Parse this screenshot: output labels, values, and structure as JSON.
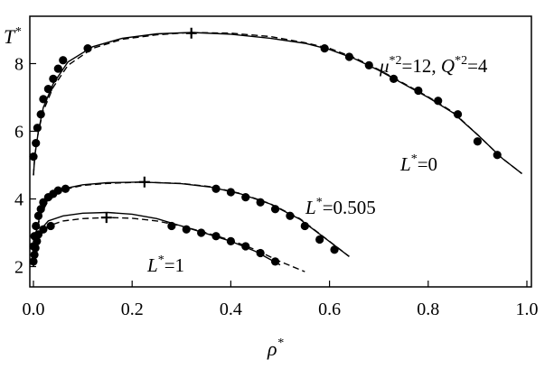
{
  "chart_data": {
    "type": "scatter",
    "title": "",
    "xlabel": "ρ",
    "xlabel_sup": "*",
    "ylabel": "T",
    "ylabel_sup": "*",
    "xlim": [
      0,
      1.0
    ],
    "ylim": [
      1.4,
      9.4
    ],
    "xticks": [
      0.0,
      0.2,
      0.4,
      0.6,
      0.8,
      1.0
    ],
    "xtick_labels": [
      "0.0",
      "0.2",
      "0.4",
      "0.6",
      "0.8",
      "1.0"
    ],
    "yticks": [
      2,
      4,
      6,
      8
    ],
    "ytick_labels": [
      "2",
      "4",
      "6",
      "8"
    ],
    "grid": false,
    "legend": "none",
    "parameter_annotation": {
      "mu_sym": "μ",
      "mu_sup": "*2",
      "mu_val": "=12, ",
      "q_sym": "Q",
      "q_sup": "*2",
      "q_val": "=4"
    },
    "series": [
      {
        "label_sym": "L",
        "label_sup": "*",
        "label_val": "=0",
        "points": [
          [
            0.0,
            5.25
          ],
          [
            0.005,
            5.65
          ],
          [
            0.008,
            6.1
          ],
          [
            0.015,
            6.5
          ],
          [
            0.02,
            6.95
          ],
          [
            0.03,
            7.25
          ],
          [
            0.04,
            7.55
          ],
          [
            0.05,
            7.85
          ],
          [
            0.06,
            8.1
          ],
          [
            0.11,
            8.45
          ],
          [
            0.59,
            8.45
          ],
          [
            0.64,
            8.2
          ],
          [
            0.68,
            7.95
          ],
          [
            0.73,
            7.55
          ],
          [
            0.78,
            7.2
          ],
          [
            0.82,
            6.9
          ],
          [
            0.86,
            6.5
          ],
          [
            0.9,
            5.7
          ],
          [
            0.94,
            5.3
          ]
        ],
        "solid_curve": [
          [
            0.0,
            4.7
          ],
          [
            0.003,
            5.3
          ],
          [
            0.01,
            6.0
          ],
          [
            0.02,
            6.7
          ],
          [
            0.04,
            7.4
          ],
          [
            0.07,
            8.05
          ],
          [
            0.12,
            8.5
          ],
          [
            0.18,
            8.75
          ],
          [
            0.25,
            8.88
          ],
          [
            0.32,
            8.92
          ],
          [
            0.4,
            8.87
          ],
          [
            0.48,
            8.75
          ],
          [
            0.55,
            8.6
          ],
          [
            0.6,
            8.42
          ],
          [
            0.65,
            8.15
          ],
          [
            0.7,
            7.8
          ],
          [
            0.75,
            7.4
          ],
          [
            0.8,
            7.0
          ],
          [
            0.85,
            6.55
          ],
          [
            0.9,
            5.9
          ],
          [
            0.95,
            5.2
          ],
          [
            0.99,
            4.75
          ]
        ],
        "dashed_curve": [
          [
            0.0,
            4.7
          ],
          [
            0.003,
            5.3
          ],
          [
            0.01,
            6.0
          ],
          [
            0.02,
            6.6
          ],
          [
            0.04,
            7.3
          ],
          [
            0.07,
            7.95
          ],
          [
            0.12,
            8.45
          ],
          [
            0.18,
            8.72
          ],
          [
            0.25,
            8.85
          ],
          [
            0.32,
            8.92
          ],
          [
            0.4,
            8.9
          ],
          [
            0.48,
            8.8
          ],
          [
            0.55,
            8.62
          ],
          [
            0.6,
            8.45
          ],
          [
            0.65,
            8.18
          ],
          [
            0.7,
            7.82
          ],
          [
            0.75,
            7.42
          ],
          [
            0.8,
            7.02
          ],
          [
            0.85,
            6.57
          ],
          [
            0.9,
            5.9
          ],
          [
            0.95,
            5.2
          ],
          [
            0.99,
            4.75
          ]
        ],
        "critical_point": [
          0.32,
          8.9
        ]
      },
      {
        "label_sym": "L",
        "label_sup": "*",
        "label_val": "=0.505",
        "points": [
          [
            0.0,
            2.6
          ],
          [
            0.002,
            2.9
          ],
          [
            0.005,
            3.2
          ],
          [
            0.01,
            3.5
          ],
          [
            0.015,
            3.7
          ],
          [
            0.02,
            3.9
          ],
          [
            0.03,
            4.05
          ],
          [
            0.04,
            4.15
          ],
          [
            0.05,
            4.25
          ],
          [
            0.065,
            4.3
          ],
          [
            0.37,
            4.3
          ],
          [
            0.4,
            4.2
          ],
          [
            0.43,
            4.05
          ],
          [
            0.46,
            3.9
          ],
          [
            0.49,
            3.7
          ],
          [
            0.52,
            3.5
          ],
          [
            0.55,
            3.2
          ],
          [
            0.58,
            2.8
          ],
          [
            0.61,
            2.5
          ]
        ],
        "solid_curve": [
          [
            0.0,
            2.3
          ],
          [
            0.005,
            3.0
          ],
          [
            0.015,
            3.6
          ],
          [
            0.03,
            4.0
          ],
          [
            0.06,
            4.3
          ],
          [
            0.1,
            4.42
          ],
          [
            0.15,
            4.48
          ],
          [
            0.22,
            4.5
          ],
          [
            0.3,
            4.45
          ],
          [
            0.36,
            4.35
          ],
          [
            0.42,
            4.15
          ],
          [
            0.48,
            3.85
          ],
          [
            0.54,
            3.4
          ],
          [
            0.59,
            2.85
          ],
          [
            0.64,
            2.3
          ]
        ],
        "dashed_curve": [
          [
            0.0,
            2.3
          ],
          [
            0.005,
            2.95
          ],
          [
            0.015,
            3.55
          ],
          [
            0.03,
            3.95
          ],
          [
            0.06,
            4.27
          ],
          [
            0.1,
            4.4
          ],
          [
            0.15,
            4.46
          ],
          [
            0.22,
            4.5
          ],
          [
            0.3,
            4.46
          ],
          [
            0.36,
            4.36
          ],
          [
            0.42,
            4.16
          ],
          [
            0.48,
            3.86
          ],
          [
            0.54,
            3.42
          ],
          [
            0.59,
            2.86
          ],
          [
            0.64,
            2.3
          ]
        ],
        "critical_point": [
          0.225,
          4.5
        ]
      },
      {
        "label_sym": "L",
        "label_sup": "*",
        "label_val": "=1",
        "points": [
          [
            0.0,
            2.15
          ],
          [
            0.002,
            2.35
          ],
          [
            0.004,
            2.55
          ],
          [
            0.007,
            2.75
          ],
          [
            0.01,
            2.95
          ],
          [
            0.02,
            3.1
          ],
          [
            0.035,
            3.2
          ],
          [
            0.28,
            3.2
          ],
          [
            0.31,
            3.1
          ],
          [
            0.34,
            3.0
          ],
          [
            0.37,
            2.9
          ],
          [
            0.4,
            2.75
          ],
          [
            0.43,
            2.6
          ],
          [
            0.46,
            2.4
          ],
          [
            0.49,
            2.15
          ]
        ],
        "solid_curve": [
          [
            0.0,
            2.0
          ],
          [
            0.005,
            2.6
          ],
          [
            0.015,
            3.1
          ],
          [
            0.03,
            3.35
          ],
          [
            0.06,
            3.5
          ],
          [
            0.1,
            3.58
          ],
          [
            0.15,
            3.6
          ],
          [
            0.2,
            3.55
          ],
          [
            0.25,
            3.42
          ],
          [
            0.3,
            3.2
          ],
          [
            0.35,
            2.98
          ],
          [
            0.4,
            2.75
          ],
          [
            0.45,
            2.45
          ],
          [
            0.5,
            2.05
          ]
        ],
        "dashed_curve": [
          [
            0.0,
            2.0
          ],
          [
            0.005,
            2.5
          ],
          [
            0.015,
            2.95
          ],
          [
            0.03,
            3.2
          ],
          [
            0.06,
            3.35
          ],
          [
            0.1,
            3.42
          ],
          [
            0.15,
            3.45
          ],
          [
            0.2,
            3.43
          ],
          [
            0.25,
            3.35
          ],
          [
            0.3,
            3.2
          ],
          [
            0.35,
            3.0
          ],
          [
            0.4,
            2.78
          ],
          [
            0.45,
            2.5
          ],
          [
            0.5,
            2.15
          ],
          [
            0.55,
            1.85
          ]
        ],
        "critical_point": [
          0.148,
          3.45
        ]
      }
    ]
  }
}
